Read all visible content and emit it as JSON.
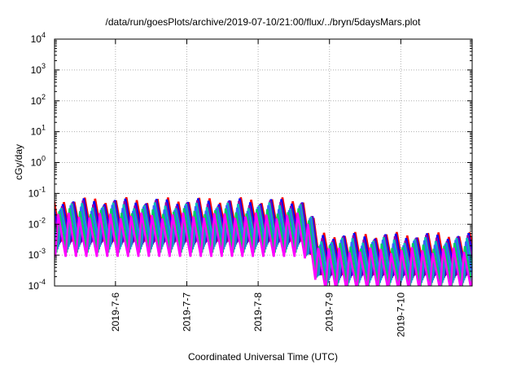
{
  "chart_data": {
    "type": "line",
    "title": "/data/run/goesPlots/archive/2019-07-10/21:00/flux/../bryn/5daysMars.plot",
    "xlabel": "Coordinated Universal Time (UTC)",
    "ylabel": "cGy/day",
    "yscale": "log",
    "ylim": [
      0.0001,
      10000
    ],
    "xlim": [
      "2019-07-05T03:30",
      "2019-07-11T00:00"
    ],
    "x_ticks": [
      "2019-7-6",
      "2019-7-7",
      "2019-7-8",
      "2019-7-9",
      "2019-7-10"
    ],
    "y_ticks": [
      {
        "base": "10",
        "exp": "-4"
      },
      {
        "base": "10",
        "exp": "-3"
      },
      {
        "base": "10",
        "exp": "-2"
      },
      {
        "base": "10",
        "exp": "-1"
      },
      {
        "base": "10",
        "exp": "0"
      },
      {
        "base": "10",
        "exp": "1"
      },
      {
        "base": "10",
        "exp": "2"
      },
      {
        "base": "10",
        "exp": "3"
      },
      {
        "base": "10",
        "exp": "4"
      }
    ],
    "grid": true,
    "legend": "none",
    "pattern": {
      "cycle_hours": 3.5,
      "drop_start": "2019-07-08T15:30",
      "drop_end": "2019-07-08T21:00",
      "before": {
        "peak": 0.06,
        "trough": 0.0022
      },
      "after": {
        "peak": 0.0045,
        "trough": 0.00018
      }
    },
    "series": [
      {
        "color": "#ff0000",
        "scale": 1.25,
        "phase": 0.1
      },
      {
        "color": "#0000ff",
        "scale": 1.15,
        "phase": 0.2
      },
      {
        "color": "#8800aa",
        "scale": 1.0,
        "phase": 0.28
      },
      {
        "color": "#00bbbb",
        "scale": 0.85,
        "phase": 0.36
      },
      {
        "color": "#3366ff",
        "scale": 0.7,
        "phase": 0.45
      },
      {
        "color": "#00cc66",
        "scale": 0.55,
        "phase": 0.55
      },
      {
        "color": "#ff00ff",
        "scale": 0.4,
        "phase": 0.65
      }
    ]
  }
}
